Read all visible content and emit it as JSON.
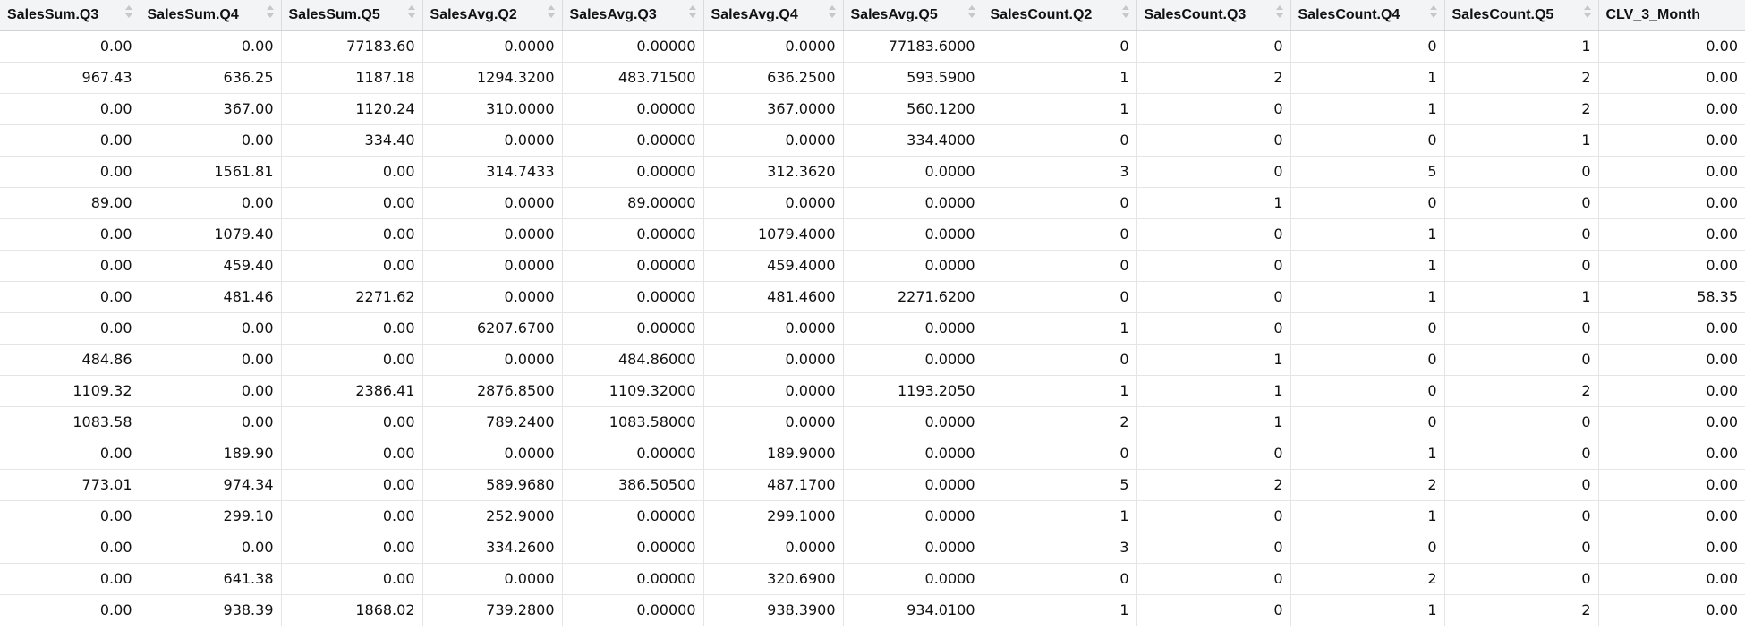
{
  "grid": {
    "columns": [
      "SalesSum.Q3",
      "SalesSum.Q4",
      "SalesSum.Q5",
      "SalesAvg.Q2",
      "SalesAvg.Q3",
      "SalesAvg.Q4",
      "SalesAvg.Q5",
      "SalesCount.Q2",
      "SalesCount.Q3",
      "SalesCount.Q4",
      "SalesCount.Q5",
      "CLV_3_Month"
    ],
    "sort_icon": "sort-updown-icon",
    "rows": [
      [
        "0.00",
        "0.00",
        "77183.60",
        "0.0000",
        "0.00000",
        "0.0000",
        "77183.6000",
        "0",
        "0",
        "0",
        "1",
        "0.00"
      ],
      [
        "967.43",
        "636.25",
        "1187.18",
        "1294.3200",
        "483.71500",
        "636.2500",
        "593.5900",
        "1",
        "2",
        "1",
        "2",
        "0.00"
      ],
      [
        "0.00",
        "367.00",
        "1120.24",
        "310.0000",
        "0.00000",
        "367.0000",
        "560.1200",
        "1",
        "0",
        "1",
        "2",
        "0.00"
      ],
      [
        "0.00",
        "0.00",
        "334.40",
        "0.0000",
        "0.00000",
        "0.0000",
        "334.4000",
        "0",
        "0",
        "0",
        "1",
        "0.00"
      ],
      [
        "0.00",
        "1561.81",
        "0.00",
        "314.7433",
        "0.00000",
        "312.3620",
        "0.0000",
        "3",
        "0",
        "5",
        "0",
        "0.00"
      ],
      [
        "89.00",
        "0.00",
        "0.00",
        "0.0000",
        "89.00000",
        "0.0000",
        "0.0000",
        "0",
        "1",
        "0",
        "0",
        "0.00"
      ],
      [
        "0.00",
        "1079.40",
        "0.00",
        "0.0000",
        "0.00000",
        "1079.4000",
        "0.0000",
        "0",
        "0",
        "1",
        "0",
        "0.00"
      ],
      [
        "0.00",
        "459.40",
        "0.00",
        "0.0000",
        "0.00000",
        "459.4000",
        "0.0000",
        "0",
        "0",
        "1",
        "0",
        "0.00"
      ],
      [
        "0.00",
        "481.46",
        "2271.62",
        "0.0000",
        "0.00000",
        "481.4600",
        "2271.6200",
        "0",
        "0",
        "1",
        "1",
        "58.35"
      ],
      [
        "0.00",
        "0.00",
        "0.00",
        "6207.6700",
        "0.00000",
        "0.0000",
        "0.0000",
        "1",
        "0",
        "0",
        "0",
        "0.00"
      ],
      [
        "484.86",
        "0.00",
        "0.00",
        "0.0000",
        "484.86000",
        "0.0000",
        "0.0000",
        "0",
        "1",
        "0",
        "0",
        "0.00"
      ],
      [
        "1109.32",
        "0.00",
        "2386.41",
        "2876.8500",
        "1109.32000",
        "0.0000",
        "1193.2050",
        "1",
        "1",
        "0",
        "2",
        "0.00"
      ],
      [
        "1083.58",
        "0.00",
        "0.00",
        "789.2400",
        "1083.58000",
        "0.0000",
        "0.0000",
        "2",
        "1",
        "0",
        "0",
        "0.00"
      ],
      [
        "0.00",
        "189.90",
        "0.00",
        "0.0000",
        "0.00000",
        "189.9000",
        "0.0000",
        "0",
        "0",
        "1",
        "0",
        "0.00"
      ],
      [
        "773.01",
        "974.34",
        "0.00",
        "589.9680",
        "386.50500",
        "487.1700",
        "0.0000",
        "5",
        "2",
        "2",
        "0",
        "0.00"
      ],
      [
        "0.00",
        "299.10",
        "0.00",
        "252.9000",
        "0.00000",
        "299.1000",
        "0.0000",
        "1",
        "0",
        "1",
        "0",
        "0.00"
      ],
      [
        "0.00",
        "0.00",
        "0.00",
        "334.2600",
        "0.00000",
        "0.0000",
        "0.0000",
        "3",
        "0",
        "0",
        "0",
        "0.00"
      ],
      [
        "0.00",
        "641.38",
        "0.00",
        "0.0000",
        "0.00000",
        "320.6900",
        "0.0000",
        "0",
        "0",
        "2",
        "0",
        "0.00"
      ],
      [
        "0.00",
        "938.39",
        "1868.02",
        "739.2800",
        "0.00000",
        "938.3900",
        "934.0100",
        "1",
        "0",
        "1",
        "2",
        "0.00"
      ]
    ]
  }
}
